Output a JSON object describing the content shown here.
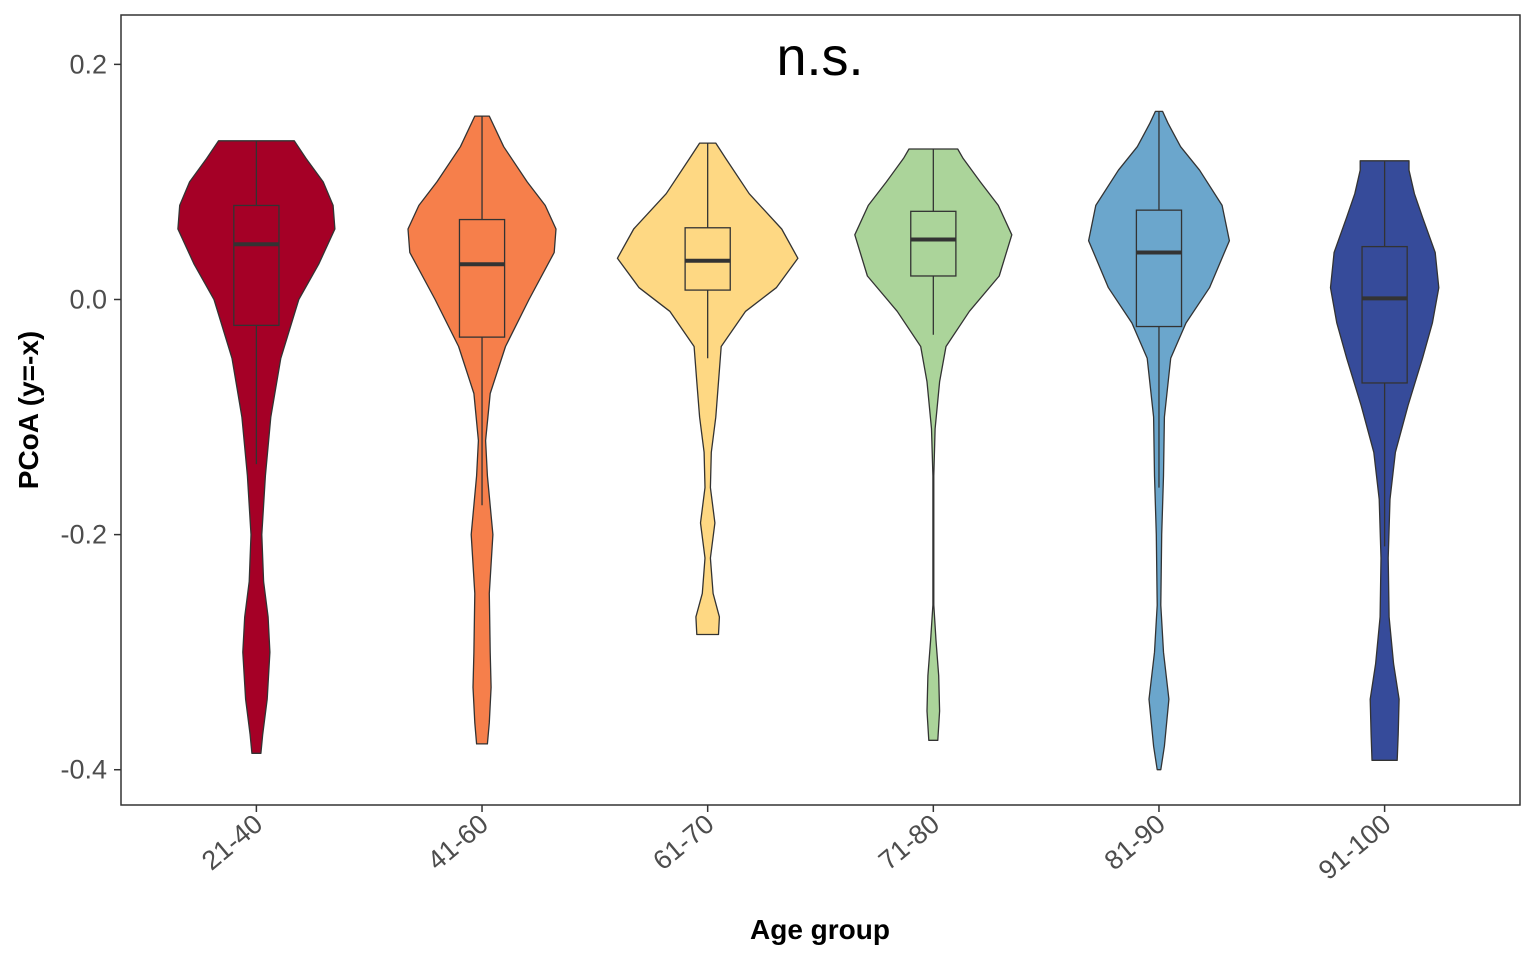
{
  "chart_data": {
    "type": "violin",
    "title": "",
    "annotation": "n.s.",
    "xlabel": "Age group",
    "ylabel": "PCoA (y=-x)",
    "ylim": [
      -0.43,
      0.242
    ],
    "yticks": [
      0.2,
      0.0,
      -0.2,
      -0.4
    ],
    "ytick_labels": [
      "0.2",
      "0.0",
      "-0.2",
      "-0.4"
    ],
    "grid": false,
    "legend": "none",
    "categories": [
      "21-40",
      "41-60",
      "61-70",
      "71-80",
      "81-90",
      "91-100"
    ],
    "groups": [
      {
        "name": "21-40",
        "color": "#a50026",
        "box": {
          "q1": -0.022,
          "median": 0.047,
          "q3": 0.08,
          "whisker_low": -0.14,
          "whisker_high": 0.135
        },
        "density": [
          [
            -0.386,
            0.05
          ],
          [
            -0.37,
            0.07
          ],
          [
            -0.34,
            0.12
          ],
          [
            -0.3,
            0.15
          ],
          [
            -0.27,
            0.13
          ],
          [
            -0.24,
            0.08
          ],
          [
            -0.2,
            0.06
          ],
          [
            -0.15,
            0.1
          ],
          [
            -0.1,
            0.16
          ],
          [
            -0.05,
            0.27
          ],
          [
            0.0,
            0.47
          ],
          [
            0.03,
            0.69
          ],
          [
            0.06,
            0.87
          ],
          [
            0.08,
            0.85
          ],
          [
            0.1,
            0.74
          ],
          [
            0.12,
            0.55
          ],
          [
            0.135,
            0.42
          ]
        ]
      },
      {
        "name": "41-60",
        "color": "#f67f4b",
        "box": {
          "q1": -0.032,
          "median": 0.03,
          "q3": 0.068,
          "whisker_low": -0.175,
          "whisker_high": 0.156
        },
        "density": [
          [
            -0.378,
            0.06
          ],
          [
            -0.36,
            0.08
          ],
          [
            -0.33,
            0.1
          ],
          [
            -0.3,
            0.09
          ],
          [
            -0.25,
            0.08
          ],
          [
            -0.2,
            0.12
          ],
          [
            -0.15,
            0.06
          ],
          [
            -0.12,
            0.04
          ],
          [
            -0.08,
            0.09
          ],
          [
            -0.04,
            0.26
          ],
          [
            0.0,
            0.52
          ],
          [
            0.04,
            0.8
          ],
          [
            0.06,
            0.82
          ],
          [
            0.08,
            0.7
          ],
          [
            0.1,
            0.5
          ],
          [
            0.13,
            0.24
          ],
          [
            0.156,
            0.08
          ]
        ]
      },
      {
        "name": "61-70",
        "color": "#fed883",
        "box": {
          "q1": 0.008,
          "median": 0.033,
          "q3": 0.061,
          "whisker_low": -0.05,
          "whisker_high": 0.133
        },
        "density": [
          [
            -0.285,
            0.12
          ],
          [
            -0.27,
            0.13
          ],
          [
            -0.25,
            0.06
          ],
          [
            -0.22,
            0.03
          ],
          [
            -0.19,
            0.08
          ],
          [
            -0.16,
            0.03
          ],
          [
            -0.13,
            0.04
          ],
          [
            -0.1,
            0.09
          ],
          [
            -0.07,
            0.12
          ],
          [
            -0.04,
            0.15
          ],
          [
            -0.01,
            0.42
          ],
          [
            0.01,
            0.76
          ],
          [
            0.035,
            1.0
          ],
          [
            0.06,
            0.82
          ],
          [
            0.09,
            0.46
          ],
          [
            0.12,
            0.2
          ],
          [
            0.133,
            0.09
          ]
        ]
      },
      {
        "name": "71-80",
        "color": "#abd49a",
        "box": {
          "q1": 0.02,
          "median": 0.051,
          "q3": 0.075,
          "whisker_low": -0.03,
          "whisker_high": 0.128
        },
        "density": [
          [
            -0.375,
            0.05
          ],
          [
            -0.35,
            0.07
          ],
          [
            -0.32,
            0.06
          ],
          [
            -0.29,
            0.03
          ],
          [
            -0.26,
            0.005
          ],
          [
            -0.2,
            0.005
          ],
          [
            -0.15,
            0.005
          ],
          [
            -0.11,
            0.02
          ],
          [
            -0.07,
            0.07
          ],
          [
            -0.04,
            0.14
          ],
          [
            -0.01,
            0.4
          ],
          [
            0.02,
            0.73
          ],
          [
            0.055,
            0.87
          ],
          [
            0.08,
            0.72
          ],
          [
            0.1,
            0.52
          ],
          [
            0.12,
            0.33
          ],
          [
            0.128,
            0.27
          ]
        ]
      },
      {
        "name": "81-90",
        "color": "#6ba6cc",
        "box": {
          "q1": -0.023,
          "median": 0.04,
          "q3": 0.076,
          "whisker_low": -0.16,
          "whisker_high": 0.16
        },
        "density": [
          [
            -0.4,
            0.02
          ],
          [
            -0.38,
            0.06
          ],
          [
            -0.34,
            0.11
          ],
          [
            -0.3,
            0.05
          ],
          [
            -0.26,
            0.02
          ],
          [
            -0.2,
            0.03
          ],
          [
            -0.15,
            0.05
          ],
          [
            -0.1,
            0.06
          ],
          [
            -0.05,
            0.13
          ],
          [
            -0.02,
            0.3
          ],
          [
            0.01,
            0.56
          ],
          [
            0.05,
            0.78
          ],
          [
            0.08,
            0.7
          ],
          [
            0.11,
            0.45
          ],
          [
            0.13,
            0.24
          ],
          [
            0.15,
            0.1
          ],
          [
            0.16,
            0.04
          ]
        ]
      },
      {
        "name": "91-100",
        "color": "#364b9a",
        "box": {
          "q1": -0.071,
          "median": 0.001,
          "q3": 0.045,
          "whisker_low": -0.21,
          "whisker_high": 0.118
        },
        "density": [
          [
            -0.392,
            0.14
          ],
          [
            -0.37,
            0.15
          ],
          [
            -0.34,
            0.16
          ],
          [
            -0.31,
            0.1
          ],
          [
            -0.27,
            0.05
          ],
          [
            -0.22,
            0.04
          ],
          [
            -0.17,
            0.06
          ],
          [
            -0.13,
            0.12
          ],
          [
            -0.09,
            0.26
          ],
          [
            -0.05,
            0.42
          ],
          [
            -0.02,
            0.53
          ],
          [
            0.01,
            0.6
          ],
          [
            0.04,
            0.56
          ],
          [
            0.07,
            0.42
          ],
          [
            0.09,
            0.33
          ],
          [
            0.11,
            0.27
          ],
          [
            0.118,
            0.27
          ]
        ]
      }
    ]
  }
}
